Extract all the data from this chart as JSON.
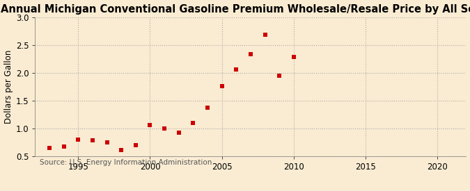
{
  "title": "Annual Michigan Conventional Gasoline Premium Wholesale/Resale Price by All Sellers",
  "ylabel": "Dollars per Gallon",
  "source": "Source: U.S. Energy Information Administration",
  "background_color": "#faecd2",
  "years": [
    1993,
    1994,
    1995,
    1996,
    1997,
    1998,
    1999,
    2000,
    2001,
    2002,
    2003,
    2004,
    2005,
    2006,
    2007,
    2008,
    2009,
    2010
  ],
  "values": [
    0.65,
    0.68,
    0.81,
    0.79,
    0.76,
    0.62,
    0.7,
    1.06,
    1.0,
    0.93,
    1.1,
    1.38,
    1.76,
    2.06,
    2.33,
    2.68,
    1.95,
    2.29
  ],
  "marker_color": "#cc0000",
  "marker_size": 18,
  "xlim": [
    1992,
    2022
  ],
  "ylim": [
    0.5,
    3.0
  ],
  "xticks": [
    1995,
    2000,
    2005,
    2010,
    2015,
    2020
  ],
  "yticks": [
    0.5,
    1.0,
    1.5,
    2.0,
    2.5,
    3.0
  ],
  "grid_color": "#aaaaaa",
  "title_fontsize": 10.5,
  "axis_label_fontsize": 8.5,
  "tick_fontsize": 8.5,
  "source_fontsize": 7.5
}
